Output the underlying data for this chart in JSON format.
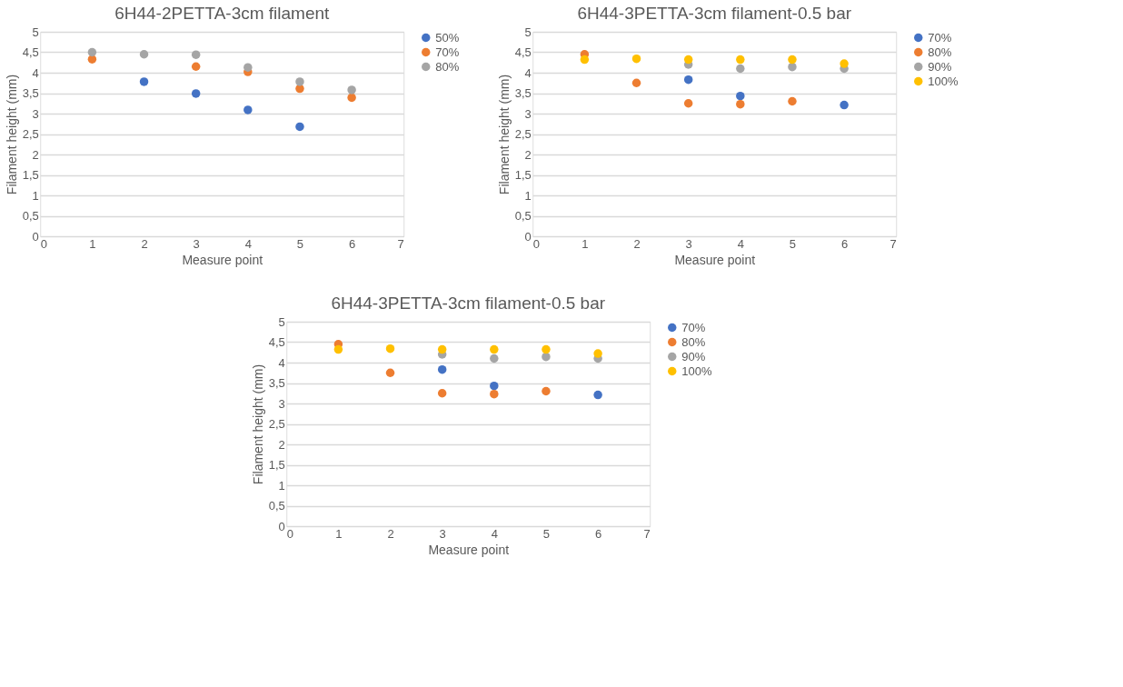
{
  "chart_data": [
    {
      "type": "scatter",
      "title": "6H44-2PETTA-3cm filament",
      "xlabel": "Measure point",
      "ylabel": "Filament height (mm)",
      "x": [
        1,
        2,
        3,
        4,
        5,
        6
      ],
      "xlim": [
        0,
        7
      ],
      "xticks": [
        0,
        1,
        2,
        3,
        4,
        5,
        6,
        7
      ],
      "ylim": [
        0,
        5
      ],
      "yticks": [
        0,
        {
          "value": 0.5,
          "label": "0,5"
        },
        1,
        {
          "value": 1.5,
          "label": "1,5"
        },
        2,
        {
          "value": 2.5,
          "label": "2,5"
        },
        3,
        {
          "value": 3.5,
          "label": "3,5"
        },
        4,
        {
          "value": 4.5,
          "label": "4,5"
        },
        5
      ],
      "grid": "y",
      "legend": "right",
      "marker": "circle",
      "series": [
        {
          "name": "50%",
          "color": "#4472c4",
          "values": [
            null,
            3.78,
            3.49,
            3.09,
            2.68,
            null
          ]
        },
        {
          "name": "70%",
          "color": "#ed7d31",
          "values": [
            4.33,
            null,
            4.15,
            4.02,
            3.61,
            3.39
          ]
        },
        {
          "name": "80%",
          "color": "#a5a5a5",
          "values": [
            4.5,
            4.45,
            4.44,
            4.13,
            3.78,
            3.58
          ]
        }
      ]
    },
    {
      "type": "scatter",
      "title": "6H44-3PETTA-3cm filament-0.5 bar",
      "xlabel": "Measure point",
      "ylabel": "Filament height (mm)",
      "x": [
        1,
        2,
        3,
        4,
        5,
        6
      ],
      "xlim": [
        0,
        7
      ],
      "xticks": [
        0,
        1,
        2,
        3,
        4,
        5,
        6,
        7
      ],
      "ylim": [
        0,
        5
      ],
      "yticks": [
        0,
        {
          "value": 0.5,
          "label": "0,5"
        },
        1,
        {
          "value": 1.5,
          "label": "1,5"
        },
        2,
        {
          "value": 2.5,
          "label": "2,5"
        },
        3,
        {
          "value": 3.5,
          "label": "3,5"
        },
        4,
        {
          "value": 4.5,
          "label": "4,5"
        },
        5
      ],
      "grid": "y",
      "legend": "right",
      "marker": "circle",
      "series": [
        {
          "name": "70%",
          "color": "#4472c4",
          "values": [
            null,
            null,
            3.83,
            3.43,
            null,
            3.21
          ]
        },
        {
          "name": "80%",
          "color": "#ed7d31",
          "values": [
            4.45,
            3.75,
            3.25,
            3.23,
            3.3,
            null
          ]
        },
        {
          "name": "90%",
          "color": "#a5a5a5",
          "values": [
            null,
            null,
            4.2,
            4.1,
            4.14,
            4.1
          ]
        },
        {
          "name": "100%",
          "color": "#ffc000",
          "values": [
            4.32,
            4.34,
            4.32,
            4.32,
            4.32,
            4.22
          ]
        }
      ]
    },
    {
      "type": "scatter",
      "title": "6H44-3PETTA-3cm filament-0.5 bar",
      "xlabel": "Measure point",
      "ylabel": "Filament height (mm)",
      "x": [
        1,
        2,
        3,
        4,
        5,
        6
      ],
      "xlim": [
        0,
        7
      ],
      "xticks": [
        0,
        1,
        2,
        3,
        4,
        5,
        6,
        7
      ],
      "ylim": [
        0,
        5
      ],
      "yticks": [
        0,
        {
          "value": 0.5,
          "label": "0,5"
        },
        1,
        {
          "value": 1.5,
          "label": "1,5"
        },
        2,
        {
          "value": 2.5,
          "label": "2,5"
        },
        3,
        {
          "value": 3.5,
          "label": "3,5"
        },
        4,
        {
          "value": 4.5,
          "label": "4,5"
        },
        5
      ],
      "grid": "y",
      "legend": "right",
      "marker": "circle",
      "series": [
        {
          "name": "70%",
          "color": "#4472c4",
          "values": [
            null,
            null,
            3.83,
            3.43,
            null,
            3.21
          ]
        },
        {
          "name": "80%",
          "color": "#ed7d31",
          "values": [
            4.45,
            3.75,
            3.25,
            3.23,
            3.3,
            null
          ]
        },
        {
          "name": "90%",
          "color": "#a5a5a5",
          "values": [
            null,
            null,
            4.2,
            4.1,
            4.14,
            4.1
          ]
        },
        {
          "name": "100%",
          "color": "#ffc000",
          "values": [
            4.32,
            4.34,
            4.32,
            4.32,
            4.32,
            4.22
          ]
        }
      ]
    }
  ]
}
